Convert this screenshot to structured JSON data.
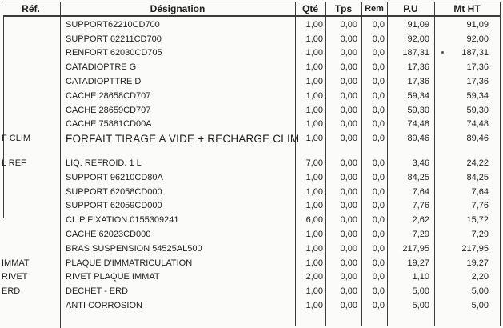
{
  "document_type_label": "parts and labor invoice table (scanned)",
  "colors": {
    "background": "#fbfbf9",
    "text": "#1e1e1e",
    "line": "#3c3c3c"
  },
  "table": {
    "columns": {
      "ref": "Réf.",
      "designation": "Désignation",
      "qte": "Qté",
      "tps": "Tps",
      "rem": "Rem",
      "pu": "P.U",
      "mtht": "Mt HT"
    },
    "rows": [
      {
        "ref": "",
        "designation": "SUPPORT62210CD700",
        "qte": "1,00",
        "tps": "0,00",
        "rem": "0,0",
        "pu": "91,09",
        "mt": "91,09"
      },
      {
        "ref": "",
        "designation": "SUPPORT 62211CD700",
        "qte": "1,00",
        "tps": "0,00",
        "rem": "0,0",
        "pu": "92,00",
        "mt": "92,00"
      },
      {
        "ref": "",
        "designation": "RENFORT 62030CD705",
        "qte": "1,00",
        "tps": "0,00",
        "rem": "0,0",
        "pu": "187,31",
        "mt": "187,31"
      },
      {
        "ref": "",
        "designation": "CATADIOPTRE G",
        "qte": "1,00",
        "tps": "0,00",
        "rem": "0,0",
        "pu": "17,36",
        "mt": "17,36"
      },
      {
        "ref": "",
        "designation": "CATADIOPTTRE D",
        "qte": "1,00",
        "tps": "0,00",
        "rem": "0,0",
        "pu": "17,36",
        "mt": "17,36"
      },
      {
        "ref": "",
        "designation": "CACHE 28658CD707",
        "qte": "1,00",
        "tps": "0,00",
        "rem": "0,0",
        "pu": "59,34",
        "mt": "59,34"
      },
      {
        "ref": "",
        "designation": "CACHE 28659CD707",
        "qte": "1,00",
        "tps": "0,00",
        "rem": "0,0",
        "pu": "59,30",
        "mt": "59,30"
      },
      {
        "ref": "",
        "designation": "CACHE 75881CD00A",
        "qte": "1,00",
        "tps": "0,00",
        "rem": "0,0",
        "pu": "74,48",
        "mt": "74,48"
      },
      {
        "ref": "F CLIM",
        "designation": "FORFAIT TIRAGE A VIDE + RECHARGE CLIM",
        "qte": "1,00",
        "tps": "0,00",
        "rem": "0,0",
        "pu": "89,46",
        "mt": "89,46",
        "large": true
      },
      {
        "ref": "L REF",
        "designation": "LIQ. REFROID. 1 L",
        "qte": "7,00",
        "tps": "0,00",
        "rem": "0,0",
        "pu": "3,46",
        "mt": "24,22",
        "gap_before": true
      },
      {
        "ref": "",
        "designation": "SUPPORT 96210CD80A",
        "qte": "1,00",
        "tps": "0,00",
        "rem": "0,0",
        "pu": "84,25",
        "mt": "84,25"
      },
      {
        "ref": "",
        "designation": "SUPPORT 62058CD000",
        "qte": "1,00",
        "tps": "0,00",
        "rem": "0,0",
        "pu": "7,64",
        "mt": "7,64"
      },
      {
        "ref": "",
        "designation": "SUPPORT 62059CD000",
        "qte": "1,00",
        "tps": "0,00",
        "rem": "0,0",
        "pu": "7,76",
        "mt": "7,76"
      },
      {
        "ref": "",
        "designation": "CLIP FIXATION 0155309241",
        "qte": "6,00",
        "tps": "0,00",
        "rem": "0,0",
        "pu": "2,62",
        "mt": "15,72"
      },
      {
        "ref": "",
        "designation": "CACHE 62023CD000",
        "qte": "1,00",
        "tps": "0,00",
        "rem": "0,0",
        "pu": "7,29",
        "mt": "7,29"
      },
      {
        "ref": "",
        "designation": "BRAS SUSPENSION 54525AL500",
        "qte": "1,00",
        "tps": "0,00",
        "rem": "0,0",
        "pu": "217,95",
        "mt": "217,95"
      },
      {
        "ref": "IMMAT",
        "designation": "PLAQUE D'IMMATRICULATION",
        "qte": "1,00",
        "tps": "0,00",
        "rem": "0,0",
        "pu": "19,27",
        "mt": "19,27"
      },
      {
        "ref": "RIVET",
        "designation": "RIVET PLAQUE IMMAT",
        "qte": "2,00",
        "tps": "0,00",
        "rem": "0,0",
        "pu": "1,10",
        "mt": "2,20"
      },
      {
        "ref": "ERD",
        "designation": "DECHET - ERD",
        "qte": "1,00",
        "tps": "0,00",
        "rem": "0,0",
        "pu": "5,00",
        "mt": "5,00"
      },
      {
        "ref": "",
        "designation": "ANTI CORROSION",
        "qte": "1,00",
        "tps": "0,00",
        "rem": "0,0",
        "pu": "5,00",
        "mt": "5,00"
      }
    ]
  }
}
